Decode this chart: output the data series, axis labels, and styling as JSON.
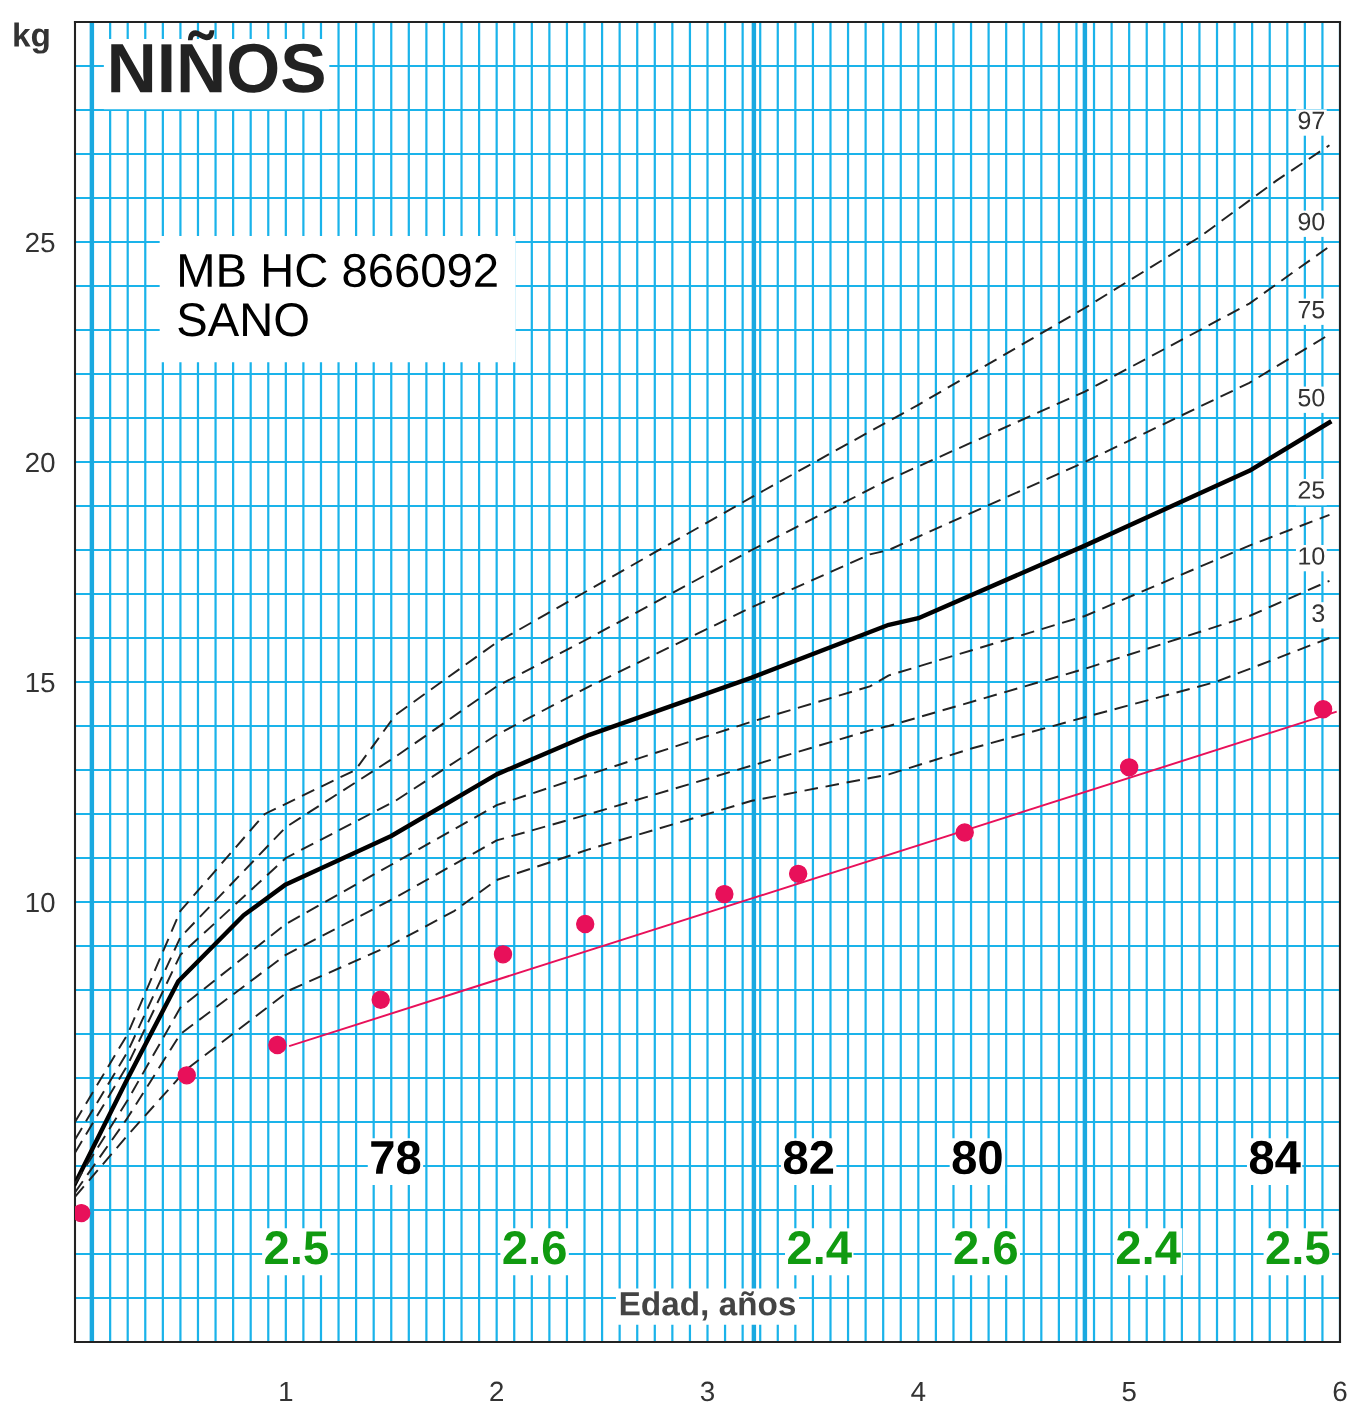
{
  "chart_data": {
    "type": "line",
    "title": "NIÑOS",
    "xlabel": "Edad, años",
    "ylabel": "kg",
    "xlim": [
      0,
      6
    ],
    "ylim": [
      0,
      30
    ],
    "xticks": [
      {
        "value": 0.0833,
        "label": null
      },
      {
        "value": 0.1667,
        "label": null
      },
      {
        "value": 0.25,
        "label": null
      },
      {
        "value": 0.3333,
        "label": null
      },
      {
        "value": 0.4167,
        "label": null
      },
      {
        "value": 0.5,
        "label": null
      },
      {
        "value": 0.5833,
        "label": null
      },
      {
        "value": 0.6667,
        "label": null
      },
      {
        "value": 0.75,
        "label": null
      },
      {
        "value": 0.8333,
        "label": null
      },
      {
        "value": 0.9167,
        "label": null
      },
      1,
      {
        "value": 1.0833,
        "label": null
      },
      {
        "value": 1.1667,
        "label": null
      },
      {
        "value": 1.25,
        "label": null
      },
      {
        "value": 1.3333,
        "label": null
      },
      {
        "value": 1.4167,
        "label": null
      },
      {
        "value": 1.5,
        "label": null
      },
      {
        "value": 1.5833,
        "label": null
      },
      {
        "value": 1.6667,
        "label": null
      },
      {
        "value": 1.75,
        "label": null
      },
      {
        "value": 1.8333,
        "label": null
      },
      {
        "value": 1.9167,
        "label": null
      },
      2,
      {
        "value": 2.0833,
        "label": null
      },
      {
        "value": 2.1667,
        "label": null
      },
      {
        "value": 2.25,
        "label": null
      },
      {
        "value": 2.3333,
        "label": null
      },
      {
        "value": 2.4167,
        "label": null
      },
      {
        "value": 2.5,
        "label": null
      },
      {
        "value": 2.5833,
        "label": null
      },
      {
        "value": 2.6667,
        "label": null
      },
      {
        "value": 2.75,
        "label": null
      },
      {
        "value": 2.8333,
        "label": null
      },
      {
        "value": 2.9167,
        "label": null
      },
      3,
      {
        "value": 3.0833,
        "label": null
      },
      {
        "value": 3.1667,
        "label": null
      },
      {
        "value": 3.25,
        "label": null
      },
      {
        "value": 3.3333,
        "label": null
      },
      {
        "value": 3.4167,
        "label": null
      },
      {
        "value": 3.5,
        "label": null
      },
      {
        "value": 3.5833,
        "label": null
      },
      {
        "value": 3.6667,
        "label": null
      },
      {
        "value": 3.75,
        "label": null
      },
      {
        "value": 3.8333,
        "label": null
      },
      {
        "value": 3.9167,
        "label": null
      },
      4,
      {
        "value": 4.0833,
        "label": null
      },
      {
        "value": 4.1667,
        "label": null
      },
      {
        "value": 4.25,
        "label": null
      },
      {
        "value": 4.3333,
        "label": null
      },
      {
        "value": 4.4167,
        "label": null
      },
      {
        "value": 4.5,
        "label": null
      },
      {
        "value": 4.5833,
        "label": null
      },
      {
        "value": 4.6667,
        "label": null
      },
      {
        "value": 4.75,
        "label": null
      },
      {
        "value": 4.8333,
        "label": null
      },
      {
        "value": 4.9167,
        "label": null
      },
      5,
      {
        "value": 5.0833,
        "label": null
      },
      {
        "value": 5.1667,
        "label": null
      },
      {
        "value": 5.25,
        "label": null
      },
      {
        "value": 5.3333,
        "label": null
      },
      {
        "value": 5.4167,
        "label": null
      },
      {
        "value": 5.5,
        "label": null
      },
      {
        "value": 5.5833,
        "label": null
      },
      {
        "value": 5.6667,
        "label": null
      },
      {
        "value": 5.75,
        "label": null
      },
      {
        "value": 5.8333,
        "label": null
      },
      {
        "value": 5.9167,
        "label": null
      },
      6
    ],
    "yticks": [
      {
        "value": 1,
        "label": null
      },
      {
        "value": 2,
        "label": null
      },
      {
        "value": 3,
        "label": null
      },
      {
        "value": 4,
        "label": null
      },
      {
        "value": 5,
        "label": null
      },
      {
        "value": 6,
        "label": null
      },
      {
        "value": 7,
        "label": null
      },
      {
        "value": 8,
        "label": null
      },
      {
        "value": 9,
        "label": null
      },
      10,
      {
        "value": 11,
        "label": null
      },
      {
        "value": 12,
        "label": null
      },
      {
        "value": 13,
        "label": null
      },
      {
        "value": 14,
        "label": null
      },
      15,
      {
        "value": 16,
        "label": null
      },
      {
        "value": 17,
        "label": null
      },
      {
        "value": 18,
        "label": null
      },
      {
        "value": 19,
        "label": null
      },
      20,
      {
        "value": 21,
        "label": null
      },
      {
        "value": 22,
        "label": null
      },
      {
        "value": 23,
        "label": null
      },
      {
        "value": 24,
        "label": null
      },
      25,
      {
        "value": 26,
        "label": null
      },
      {
        "value": 27,
        "label": null
      },
      {
        "value": 28,
        "label": null
      },
      {
        "value": 29,
        "label": null
      }
    ],
    "grid": true,
    "ref_lines": [
      {
        "axis": "x",
        "value": 0.08,
        "label": null,
        "color": "#1aa9e0"
      },
      {
        "axis": "x",
        "value": 3.22,
        "label": null,
        "color": "#1aa9e0"
      },
      {
        "axis": "x",
        "value": 4.79,
        "label": null,
        "color": "#1aa9e0"
      }
    ],
    "series": [
      {
        "name": "97",
        "color": "#222222",
        "line_style": "dashed",
        "marker": "none",
        "x": [
          0,
          0.25,
          0.5,
          0.9,
          1.33,
          1.52,
          2,
          2.44,
          3.21,
          3.66,
          4.0,
          4.79,
          5.33,
          5.7,
          5.95
        ],
        "values": [
          5.0,
          7.0,
          9.8,
          12.0,
          13.0,
          14.25,
          15.9,
          17.1,
          19.2,
          20.4,
          21.3,
          23.5,
          25.1,
          26.4,
          27.2
        ]
      },
      {
        "name": "90",
        "color": "#222222",
        "line_style": "dashed",
        "marker": "none",
        "x": [
          0,
          0.25,
          0.5,
          1,
          1.52,
          2,
          2.44,
          3.21,
          3.86,
          4.0,
          4.79,
          5.57,
          5.95
        ],
        "values": [
          4.6,
          6.6,
          9.2,
          11.7,
          13.3,
          14.9,
          16.0,
          18.0,
          19.6,
          19.9,
          21.6,
          23.6,
          24.9
        ]
      },
      {
        "name": "75",
        "color": "#222222",
        "line_style": "dashed",
        "marker": "none",
        "x": [
          0,
          0.25,
          0.5,
          1,
          1.52,
          2,
          2.44,
          3.21,
          3.77,
          3.86,
          4.79,
          5.57,
          5.95
        ],
        "values": [
          4.3,
          6.3,
          8.8,
          11.0,
          12.3,
          13.8,
          14.9,
          16.7,
          17.9,
          18.0,
          20.0,
          21.8,
          22.9
        ]
      },
      {
        "name": "50",
        "color": "#000000",
        "line_style": "solid",
        "marker": "none",
        "x": [
          0,
          0.24,
          0.49,
          0.8,
          1,
          1.5,
          2,
          2.44,
          3.21,
          3.86,
          4.0,
          4.79,
          5.57,
          5.95
        ],
        "values": [
          3.6,
          5.9,
          8.2,
          9.7,
          10.4,
          11.5,
          12.9,
          13.8,
          15.1,
          16.3,
          16.45,
          18.1,
          19.8,
          20.9
        ]
      },
      {
        "name": "25",
        "color": "#222222",
        "line_style": "dashed",
        "marker": "none",
        "x": [
          0,
          0.25,
          0.5,
          1,
          1.52,
          2,
          2.44,
          3.21,
          3.77,
          3.86,
          4.79,
          5.57,
          5.95
        ],
        "values": [
          3.6,
          5.5,
          7.6,
          9.5,
          10.9,
          12.2,
          12.9,
          14.1,
          14.9,
          15.15,
          16.5,
          18.1,
          18.8
        ]
      },
      {
        "name": "10",
        "color": "#222222",
        "line_style": "dashed",
        "marker": "none",
        "x": [
          0,
          0.25,
          0.5,
          1,
          1.52,
          2,
          2.44,
          3.21,
          3.77,
          3.86,
          4.79,
          5.57,
          5.95
        ],
        "values": [
          3.4,
          5.1,
          7.0,
          8.8,
          10.1,
          11.4,
          12.0,
          13.1,
          13.9,
          14.0,
          15.3,
          16.5,
          17.3
        ]
      },
      {
        "name": "3",
        "color": "#222222",
        "line_style": "dashed",
        "marker": "none",
        "x": [
          0,
          0.25,
          0.53,
          1.02,
          1.49,
          1.8,
          2,
          2.44,
          3.21,
          3.86,
          4.26,
          4.79,
          5.41,
          5.95
        ],
        "values": [
          3.3,
          4.7,
          6.2,
          8.0,
          9.0,
          9.8,
          10.5,
          11.2,
          12.3,
          12.9,
          13.5,
          14.2,
          15.0,
          16.0
        ]
      },
      {
        "type": "scatter",
        "color": "#e8105a",
        "marker": "circle",
        "x": [
          0.03,
          0.53,
          0.96,
          1.45,
          2.03,
          2.42,
          3.08,
          3.43,
          4.22,
          5.0,
          5.92
        ],
        "values": [
          2.93,
          6.06,
          6.75,
          7.78,
          8.81,
          9.5,
          10.18,
          10.64,
          11.58,
          13.06,
          14.38
        ]
      },
      {
        "type": "line",
        "color": "#e8105a",
        "line_style": "solid",
        "marker": "none",
        "x": [
          1.02,
          5.98
        ],
        "values": [
          6.73,
          14.32
        ]
      }
    ],
    "annotations": [
      "MB HC 866092\nSANO",
      "78",
      "82",
      "80",
      "84",
      "2.5",
      "2.6",
      "2.4",
      "2.6",
      "2.4",
      "2.5"
    ]
  }
}
